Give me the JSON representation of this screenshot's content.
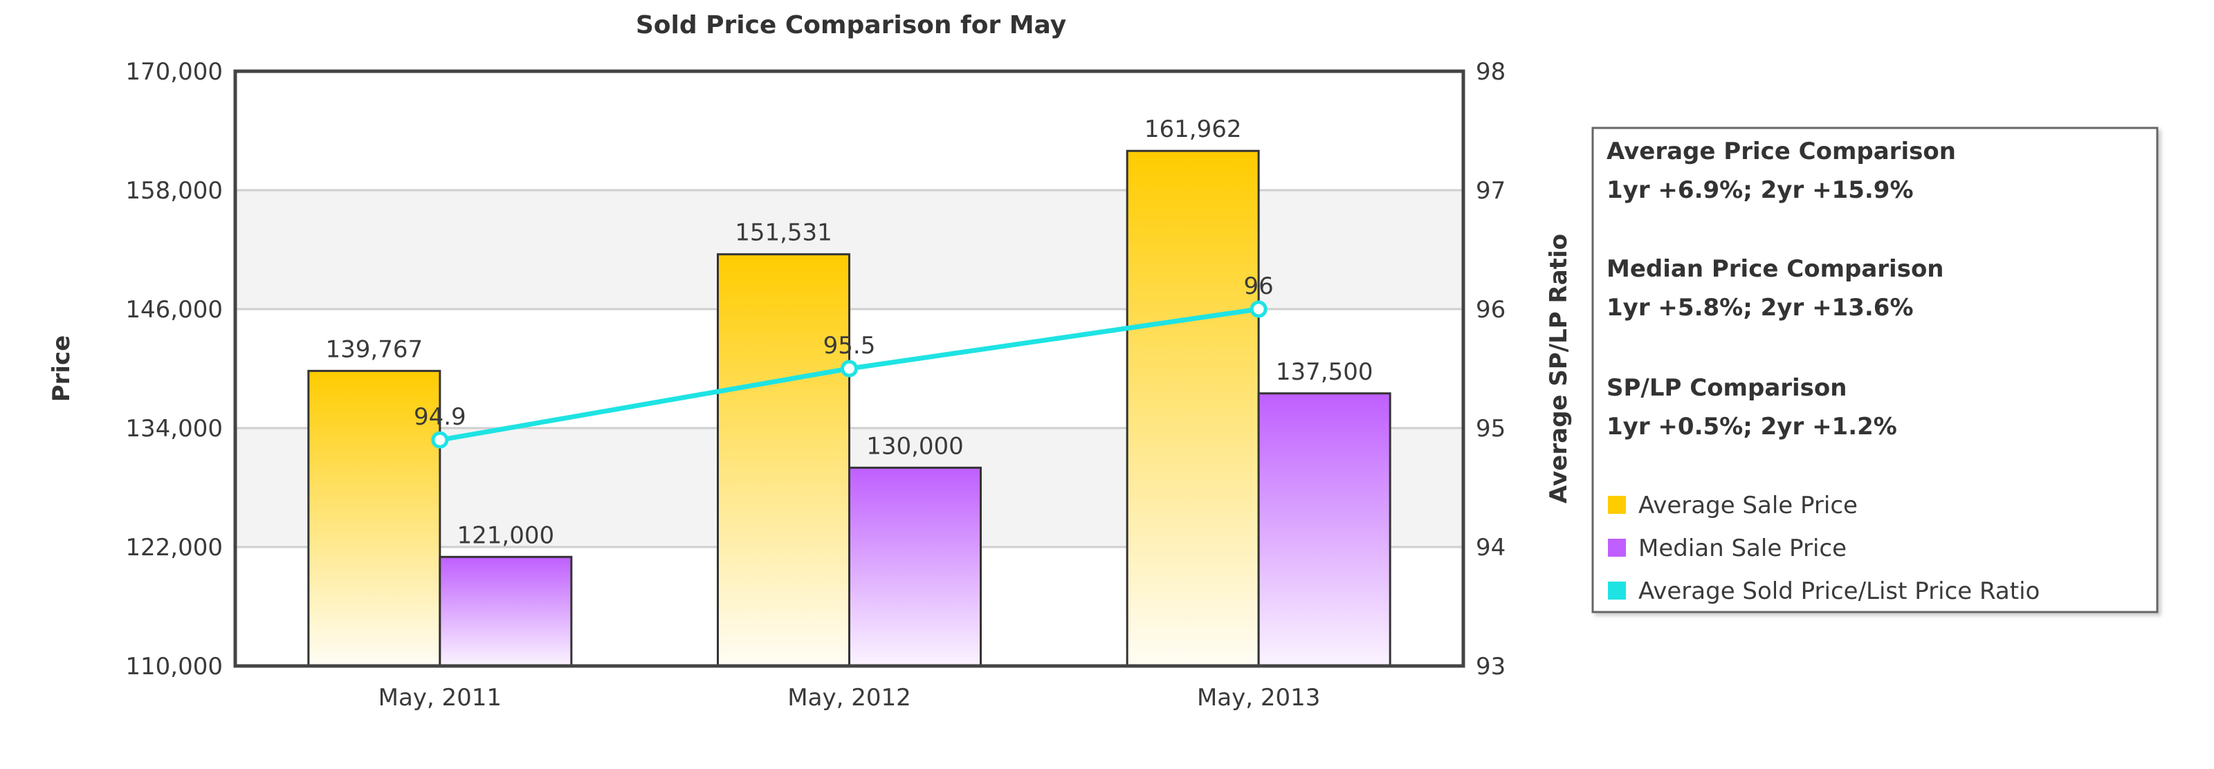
{
  "chart_data": {
    "type": "bar",
    "title": "Sold Price Comparison for May",
    "xlabel": "",
    "ylabel": "Price",
    "y2label": "Average SP/LP Ratio",
    "categories": [
      "May, 2011",
      "May, 2012",
      "May, 2013"
    ],
    "ylim": [
      110000,
      170000
    ],
    "y2lim": [
      93,
      98
    ],
    "y_ticks": [
      "110,000",
      "122,000",
      "134,000",
      "146,000",
      "158,000",
      "170,000"
    ],
    "y_tick_values": [
      110000,
      122000,
      134000,
      146000,
      158000,
      170000
    ],
    "y2_ticks": [
      "93",
      "94",
      "95",
      "96",
      "97",
      "98"
    ],
    "y2_tick_values": [
      93,
      94,
      95,
      96,
      97,
      98
    ],
    "series": [
      {
        "name": "Average Sale Price",
        "type": "bar",
        "axis": "left",
        "color": "#ffcc00",
        "values": [
          139767,
          151531,
          161962
        ],
        "labels": [
          "139,767",
          "151,531",
          "161,962"
        ]
      },
      {
        "name": "Median Sale Price",
        "type": "bar",
        "axis": "left",
        "color": "#bf5fff",
        "values": [
          121000,
          130000,
          137500
        ],
        "labels": [
          "121,000",
          "130,000",
          "137,500"
        ]
      },
      {
        "name": "Average Sold Price/List Price Ratio",
        "type": "line",
        "axis": "right",
        "color": "#1ee3e3",
        "values": [
          94.9,
          95.5,
          96
        ],
        "labels": [
          "94.9",
          "95.5",
          "96"
        ]
      }
    ],
    "grid": true,
    "legend": {
      "placement": "right",
      "sections": [
        {
          "heading": "Average Price Comparison",
          "text": "1yr +6.9%; 2yr +15.9%"
        },
        {
          "heading": "Median Price Comparison",
          "text": "1yr +5.8%; 2yr +13.6%"
        },
        {
          "heading": "SP/LP Comparison",
          "text": "1yr +0.5%; 2yr +1.2%"
        }
      ],
      "items": [
        "Average Sale Price",
        "Median Sale Price",
        "Average Sold Price/List Price Ratio"
      ]
    }
  }
}
